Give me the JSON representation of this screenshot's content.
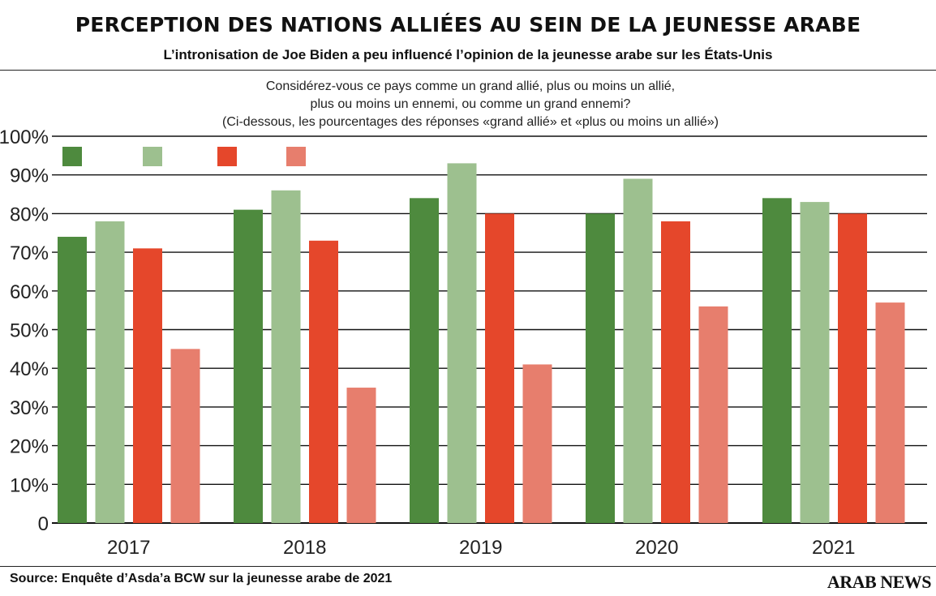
{
  "header": {
    "title": "PERCEPTION DES NATIONS ALLIÉES AU SEIN DE LA JEUNESSE ARABE",
    "subtitle": "L’intronisation de Joe Biden a peu influencé l’opinion de la jeunesse arabe sur les États-Unis"
  },
  "question": {
    "line1": "Considérez-vous ce pays comme un grand allié, plus ou moins un allié,",
    "line2": "plus ou moins un ennemi, ou comme un grand ennemi?",
    "line3": "(Ci-dessous, les pourcentages des réponses «grand allié» et «plus ou moins un allié»)"
  },
  "footer": {
    "source": "Source: Enquête d’Asda’a BCW sur la jeunesse arabe de 2021",
    "brand": "ARAB NEWS"
  },
  "chart_data": {
    "type": "bar",
    "title": "PERCEPTION DES NATIONS ALLIÉES AU SEIN DE LA JEUNESSE ARABE",
    "xlabel": "",
    "ylabel": "",
    "ylim": [
      0,
      100
    ],
    "grid": true,
    "legend_position": "top-left",
    "categories": [
      "2017",
      "2018",
      "2019",
      "2020",
      "2021"
    ],
    "yticks": [
      {
        "value": 0,
        "label": "0"
      },
      {
        "value": 10,
        "label": "10%"
      },
      {
        "value": 20,
        "label": "20%"
      },
      {
        "value": 30,
        "label": "30%"
      },
      {
        "value": 40,
        "label": "40%"
      },
      {
        "value": 50,
        "label": "50%"
      },
      {
        "value": 60,
        "label": "60%"
      },
      {
        "value": 70,
        "label": "70%"
      },
      {
        "value": 80,
        "label": "80%"
      },
      {
        "value": 90,
        "label": "90%"
      },
      {
        "value": 100,
        "label": "100%"
      }
    ],
    "series": [
      {
        "name": "",
        "color": "#4e8a3e",
        "values": [
          74,
          81,
          84,
          80,
          84
        ]
      },
      {
        "name": "",
        "color": "#9dc08f",
        "values": [
          78,
          86,
          93,
          89,
          83
        ]
      },
      {
        "name": "",
        "color": "#e5472b",
        "values": [
          71,
          73,
          80,
          78,
          80
        ]
      },
      {
        "name": "",
        "color": "#e77e6d",
        "values": [
          45,
          35,
          41,
          56,
          57
        ]
      }
    ]
  }
}
